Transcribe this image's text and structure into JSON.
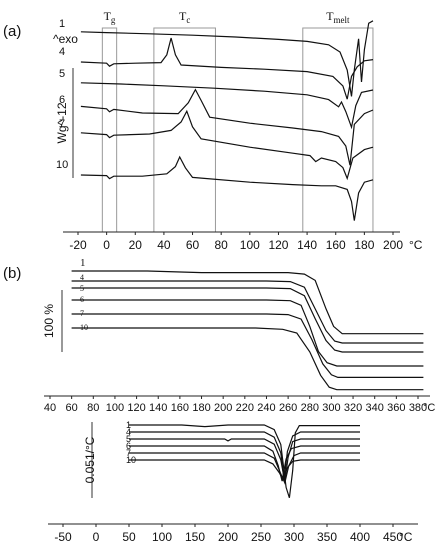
{
  "chart_data": [
    {
      "type": "line",
      "panel_label": "(a)",
      "y_scale_label": "Wg^-12",
      "exo_label": "^exo",
      "x_unit": "°C",
      "xlim": [
        -25,
        205
      ],
      "x_ticks": [
        -20,
        0,
        20,
        40,
        60,
        80,
        100,
        120,
        140,
        160,
        180,
        200
      ],
      "regions": [
        {
          "key": "Tg",
          "base": "T",
          "sub": "g",
          "range": [
            -3,
            7
          ]
        },
        {
          "key": "Tc",
          "base": "T",
          "sub": "c",
          "range": [
            33,
            76
          ]
        },
        {
          "key": "Tmelt",
          "base": "T",
          "sub": "melt",
          "range": [
            137,
            186
          ]
        }
      ],
      "series": [
        {
          "name": "1",
          "points": [
            [
              -18,
              0.18
            ],
            [
              0,
              0.12
            ],
            [
              30,
              0.02
            ],
            [
              60,
              -0.1
            ],
            [
              90,
              -0.25
            ],
            [
              120,
              -0.45
            ],
            [
              140,
              -0.62
            ],
            [
              155,
              -0.9
            ],
            [
              163,
              -1.5
            ],
            [
              168,
              -3.0
            ],
            [
              171,
              -5.2
            ],
            [
              173,
              -3.0
            ],
            [
              176,
              -0.4
            ],
            [
              178,
              -4.0
            ],
            [
              180,
              -1.3
            ],
            [
              183,
              0.9
            ],
            [
              186,
              1.1
            ]
          ]
        },
        {
          "name": "4",
          "points": [
            [
              -18,
              0.0
            ],
            [
              0,
              -0.1
            ],
            [
              2,
              -0.35
            ],
            [
              5,
              -0.15
            ],
            [
              20,
              -0.1
            ],
            [
              38,
              -0.05
            ],
            [
              42,
              0.6
            ],
            [
              45,
              2.0
            ],
            [
              48,
              0.6
            ],
            [
              52,
              -0.25
            ],
            [
              80,
              -0.45
            ],
            [
              110,
              -0.6
            ],
            [
              140,
              -0.8
            ],
            [
              158,
              -1.2
            ],
            [
              165,
              -2.0
            ],
            [
              168,
              -3.1
            ],
            [
              171,
              -1.2
            ],
            [
              175,
              -0.4
            ],
            [
              180,
              0.1
            ],
            [
              186,
              0.2
            ]
          ]
        },
        {
          "name": "5",
          "points": [
            [
              -18,
              0.1
            ],
            [
              10,
              0.0
            ],
            [
              40,
              -0.15
            ],
            [
              75,
              -0.35
            ],
            [
              110,
              -0.6
            ],
            [
              140,
              -0.9
            ],
            [
              155,
              -1.3
            ],
            [
              162,
              -1.9
            ],
            [
              164,
              -1.5
            ],
            [
              167,
              -2.3
            ],
            [
              171,
              -3.6
            ],
            [
              174,
              -1.8
            ],
            [
              178,
              -0.7
            ],
            [
              186,
              -0.5
            ]
          ]
        },
        {
          "name": "6",
          "points": [
            [
              -18,
              0.3
            ],
            [
              0,
              0.1
            ],
            [
              2,
              -0.15
            ],
            [
              5,
              0.05
            ],
            [
              25,
              -0.25
            ],
            [
              50,
              -0.3
            ],
            [
              57,
              0.6
            ],
            [
              62,
              1.7
            ],
            [
              66,
              0.8
            ],
            [
              72,
              -0.6
            ],
            [
              100,
              -1.1
            ],
            [
              130,
              -1.5
            ],
            [
              150,
              -1.8
            ],
            [
              162,
              -2.2
            ],
            [
              167,
              -3.0
            ],
            [
              170,
              -4.6
            ],
            [
              173,
              -1.2
            ],
            [
              180,
              -0.3
            ],
            [
              186,
              0.0
            ]
          ]
        },
        {
          "name": "7",
          "points": [
            [
              -18,
              0.1
            ],
            [
              0,
              -0.05
            ],
            [
              2,
              -0.3
            ],
            [
              5,
              -0.1
            ],
            [
              30,
              0.0
            ],
            [
              45,
              0.3
            ],
            [
              52,
              1.0
            ],
            [
              56,
              1.9
            ],
            [
              60,
              0.6
            ],
            [
              66,
              -0.4
            ],
            [
              100,
              -1.1
            ],
            [
              130,
              -1.6
            ],
            [
              142,
              -1.8
            ],
            [
              146,
              -2.3
            ],
            [
              150,
              -2.0
            ],
            [
              160,
              -2.3
            ],
            [
              165,
              -2.8
            ],
            [
              168,
              -3.7
            ],
            [
              172,
              -2.0
            ],
            [
              180,
              -1.3
            ],
            [
              186,
              -1.1
            ]
          ]
        },
        {
          "name": "10",
          "points": [
            [
              -18,
              0.0
            ],
            [
              0,
              -0.05
            ],
            [
              2,
              -0.3
            ],
            [
              5,
              -0.1
            ],
            [
              25,
              -0.1
            ],
            [
              42,
              0.1
            ],
            [
              48,
              0.7
            ],
            [
              51,
              1.5
            ],
            [
              55,
              0.6
            ],
            [
              60,
              -0.2
            ],
            [
              100,
              -0.6
            ],
            [
              130,
              -0.8
            ],
            [
              150,
              -0.9
            ],
            [
              160,
              -0.9
            ],
            [
              168,
              -1.2
            ],
            [
              171,
              -2.2
            ],
            [
              173,
              -3.8
            ],
            [
              176,
              -1.5
            ],
            [
              180,
              -0.6
            ],
            [
              186,
              -0.4
            ]
          ]
        }
      ]
    },
    {
      "type": "line",
      "panel_label": "(b)",
      "y_scale_label": "100 %",
      "x_unit": "°C",
      "xlim": [
        40,
        385
      ],
      "x_ticks": [
        40,
        60,
        80,
        100,
        120,
        140,
        160,
        180,
        200,
        220,
        240,
        260,
        280,
        300,
        320,
        340,
        360,
        380
      ],
      "series": [
        {
          "name": "1",
          "points": [
            [
              60,
              100
            ],
            [
              130,
              100
            ],
            [
              180,
              97.5
            ],
            [
              260,
              97.5
            ],
            [
              275,
              95
            ],
            [
              285,
              85
            ],
            [
              295,
              40
            ],
            [
              302,
              12
            ],
            [
              310,
              0.5
            ],
            [
              385,
              0.5
            ]
          ]
        },
        {
          "name": "4",
          "points": [
            [
              60,
              100
            ],
            [
              240,
              100
            ],
            [
              262,
              99
            ],
            [
              275,
              90
            ],
            [
              285,
              55
            ],
            [
              295,
              20
            ],
            [
              303,
              3
            ],
            [
              310,
              0
            ],
            [
              385,
              0
            ]
          ]
        },
        {
          "name": "5",
          "points": [
            [
              60,
              100
            ],
            [
              240,
              100
            ],
            [
              262,
              99
            ],
            [
              275,
              88
            ],
            [
              285,
              52
            ],
            [
              295,
              18
            ],
            [
              303,
              3
            ],
            [
              310,
              0
            ],
            [
              385,
              0
            ]
          ]
        },
        {
          "name": "6",
          "points": [
            [
              60,
              100
            ],
            [
              240,
              100
            ],
            [
              262,
              99
            ],
            [
              272,
              92
            ],
            [
              280,
              60
            ],
            [
              288,
              22
            ],
            [
              296,
              5
            ],
            [
              305,
              0
            ],
            [
              385,
              0
            ]
          ]
        },
        {
          "name": "7",
          "points": [
            [
              60,
              100
            ],
            [
              240,
              100
            ],
            [
              260,
              99
            ],
            [
              272,
              92
            ],
            [
              282,
              60
            ],
            [
              292,
              22
            ],
            [
              300,
              5
            ],
            [
              306,
              1
            ],
            [
              385,
              1
            ]
          ]
        },
        {
          "name": "10",
          "points": [
            [
              60,
              100
            ],
            [
              230,
              100
            ],
            [
              255,
              98
            ],
            [
              268,
              92
            ],
            [
              280,
              62
            ],
            [
              290,
              25
            ],
            [
              298,
              6
            ],
            [
              305,
              2
            ],
            [
              385,
              2
            ]
          ]
        }
      ]
    },
    {
      "type": "line",
      "y_scale_label": "0.051/°C",
      "x_unit": "°C",
      "xlim": [
        -70,
        460
      ],
      "x_ticks": [
        -50,
        0,
        50,
        100,
        150,
        200,
        250,
        300,
        350,
        400,
        450
      ],
      "series": [
        {
          "name": "1",
          "points": [
            [
              50,
              0
            ],
            [
              130,
              0
            ],
            [
              165,
              -0.12
            ],
            [
              200,
              0
            ],
            [
              255,
              0
            ],
            [
              270,
              -0.35
            ],
            [
              280,
              -1.5
            ],
            [
              288,
              -4.8
            ],
            [
              293,
              -5.6
            ],
            [
              298,
              -3.5
            ],
            [
              302,
              -0.6
            ],
            [
              308,
              -0.05
            ],
            [
              400,
              -0.05
            ]
          ]
        },
        {
          "name": "4",
          "points": [
            [
              50,
              0
            ],
            [
              255,
              0
            ],
            [
              270,
              -0.4
            ],
            [
              280,
              -1.6
            ],
            [
              285,
              -3.7
            ],
            [
              290,
              -1.5
            ],
            [
              298,
              -0.3
            ],
            [
              310,
              0
            ],
            [
              400,
              0
            ]
          ]
        },
        {
          "name": "5",
          "points": [
            [
              50,
              0
            ],
            [
              195,
              0
            ],
            [
              200,
              -0.15
            ],
            [
              205,
              0
            ],
            [
              255,
              0
            ],
            [
              270,
              -0.4
            ],
            [
              280,
              -1.6
            ],
            [
              286,
              -3.3
            ],
            [
              291,
              -1.4
            ],
            [
              298,
              -0.2
            ],
            [
              310,
              0
            ],
            [
              400,
              0
            ]
          ]
        },
        {
          "name": "6",
          "points": [
            [
              50,
              0
            ],
            [
              255,
              0
            ],
            [
              268,
              -0.4
            ],
            [
              276,
              -1.5
            ],
            [
              282,
              -2.7
            ],
            [
              288,
              -1.0
            ],
            [
              296,
              -0.2
            ],
            [
              310,
              0
            ],
            [
              400,
              0
            ]
          ]
        },
        {
          "name": "7",
          "points": [
            [
              50,
              0
            ],
            [
              255,
              0
            ],
            [
              270,
              -0.4
            ],
            [
              280,
              -1.6
            ],
            [
              286,
              -2.3
            ],
            [
              292,
              -1.0
            ],
            [
              300,
              -0.2
            ],
            [
              310,
              0
            ],
            [
              400,
              0
            ]
          ]
        },
        {
          "name": "10",
          "points": [
            [
              50,
              0
            ],
            [
              255,
              0
            ],
            [
              268,
              -0.3
            ],
            [
              278,
              -1.0
            ],
            [
              283,
              -1.5
            ],
            [
              290,
              -0.6
            ],
            [
              298,
              -0.1
            ],
            [
              310,
              0
            ],
            [
              400,
              0
            ]
          ]
        }
      ]
    }
  ]
}
